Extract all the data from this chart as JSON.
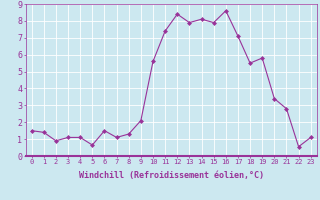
{
  "x": [
    0,
    1,
    2,
    3,
    4,
    5,
    6,
    7,
    8,
    9,
    10,
    11,
    12,
    13,
    14,
    15,
    16,
    17,
    18,
    19,
    20,
    21,
    22,
    23
  ],
  "y": [
    1.5,
    1.4,
    0.9,
    1.1,
    1.1,
    0.65,
    1.5,
    1.1,
    1.3,
    2.1,
    5.6,
    7.4,
    8.4,
    7.9,
    8.1,
    7.9,
    8.6,
    7.1,
    5.5,
    5.8,
    3.4,
    2.8,
    0.55,
    1.1
  ],
  "line_color": "#993399",
  "marker": "D",
  "marker_size": 2,
  "bg_color": "#cce8f0",
  "grid_color": "#ffffff",
  "xlabel": "Windchill (Refroidissement éolien,°C)",
  "xlim": [
    -0.5,
    23.5
  ],
  "ylim": [
    0,
    9
  ],
  "xticks": [
    0,
    1,
    2,
    3,
    4,
    5,
    6,
    7,
    8,
    9,
    10,
    11,
    12,
    13,
    14,
    15,
    16,
    17,
    18,
    19,
    20,
    21,
    22,
    23
  ],
  "yticks": [
    0,
    1,
    2,
    3,
    4,
    5,
    6,
    7,
    8,
    9
  ],
  "tick_color": "#993399",
  "label_color": "#993399",
  "spine_color": "#993399",
  "tick_fontsize": 5,
  "xlabel_fontsize": 6
}
